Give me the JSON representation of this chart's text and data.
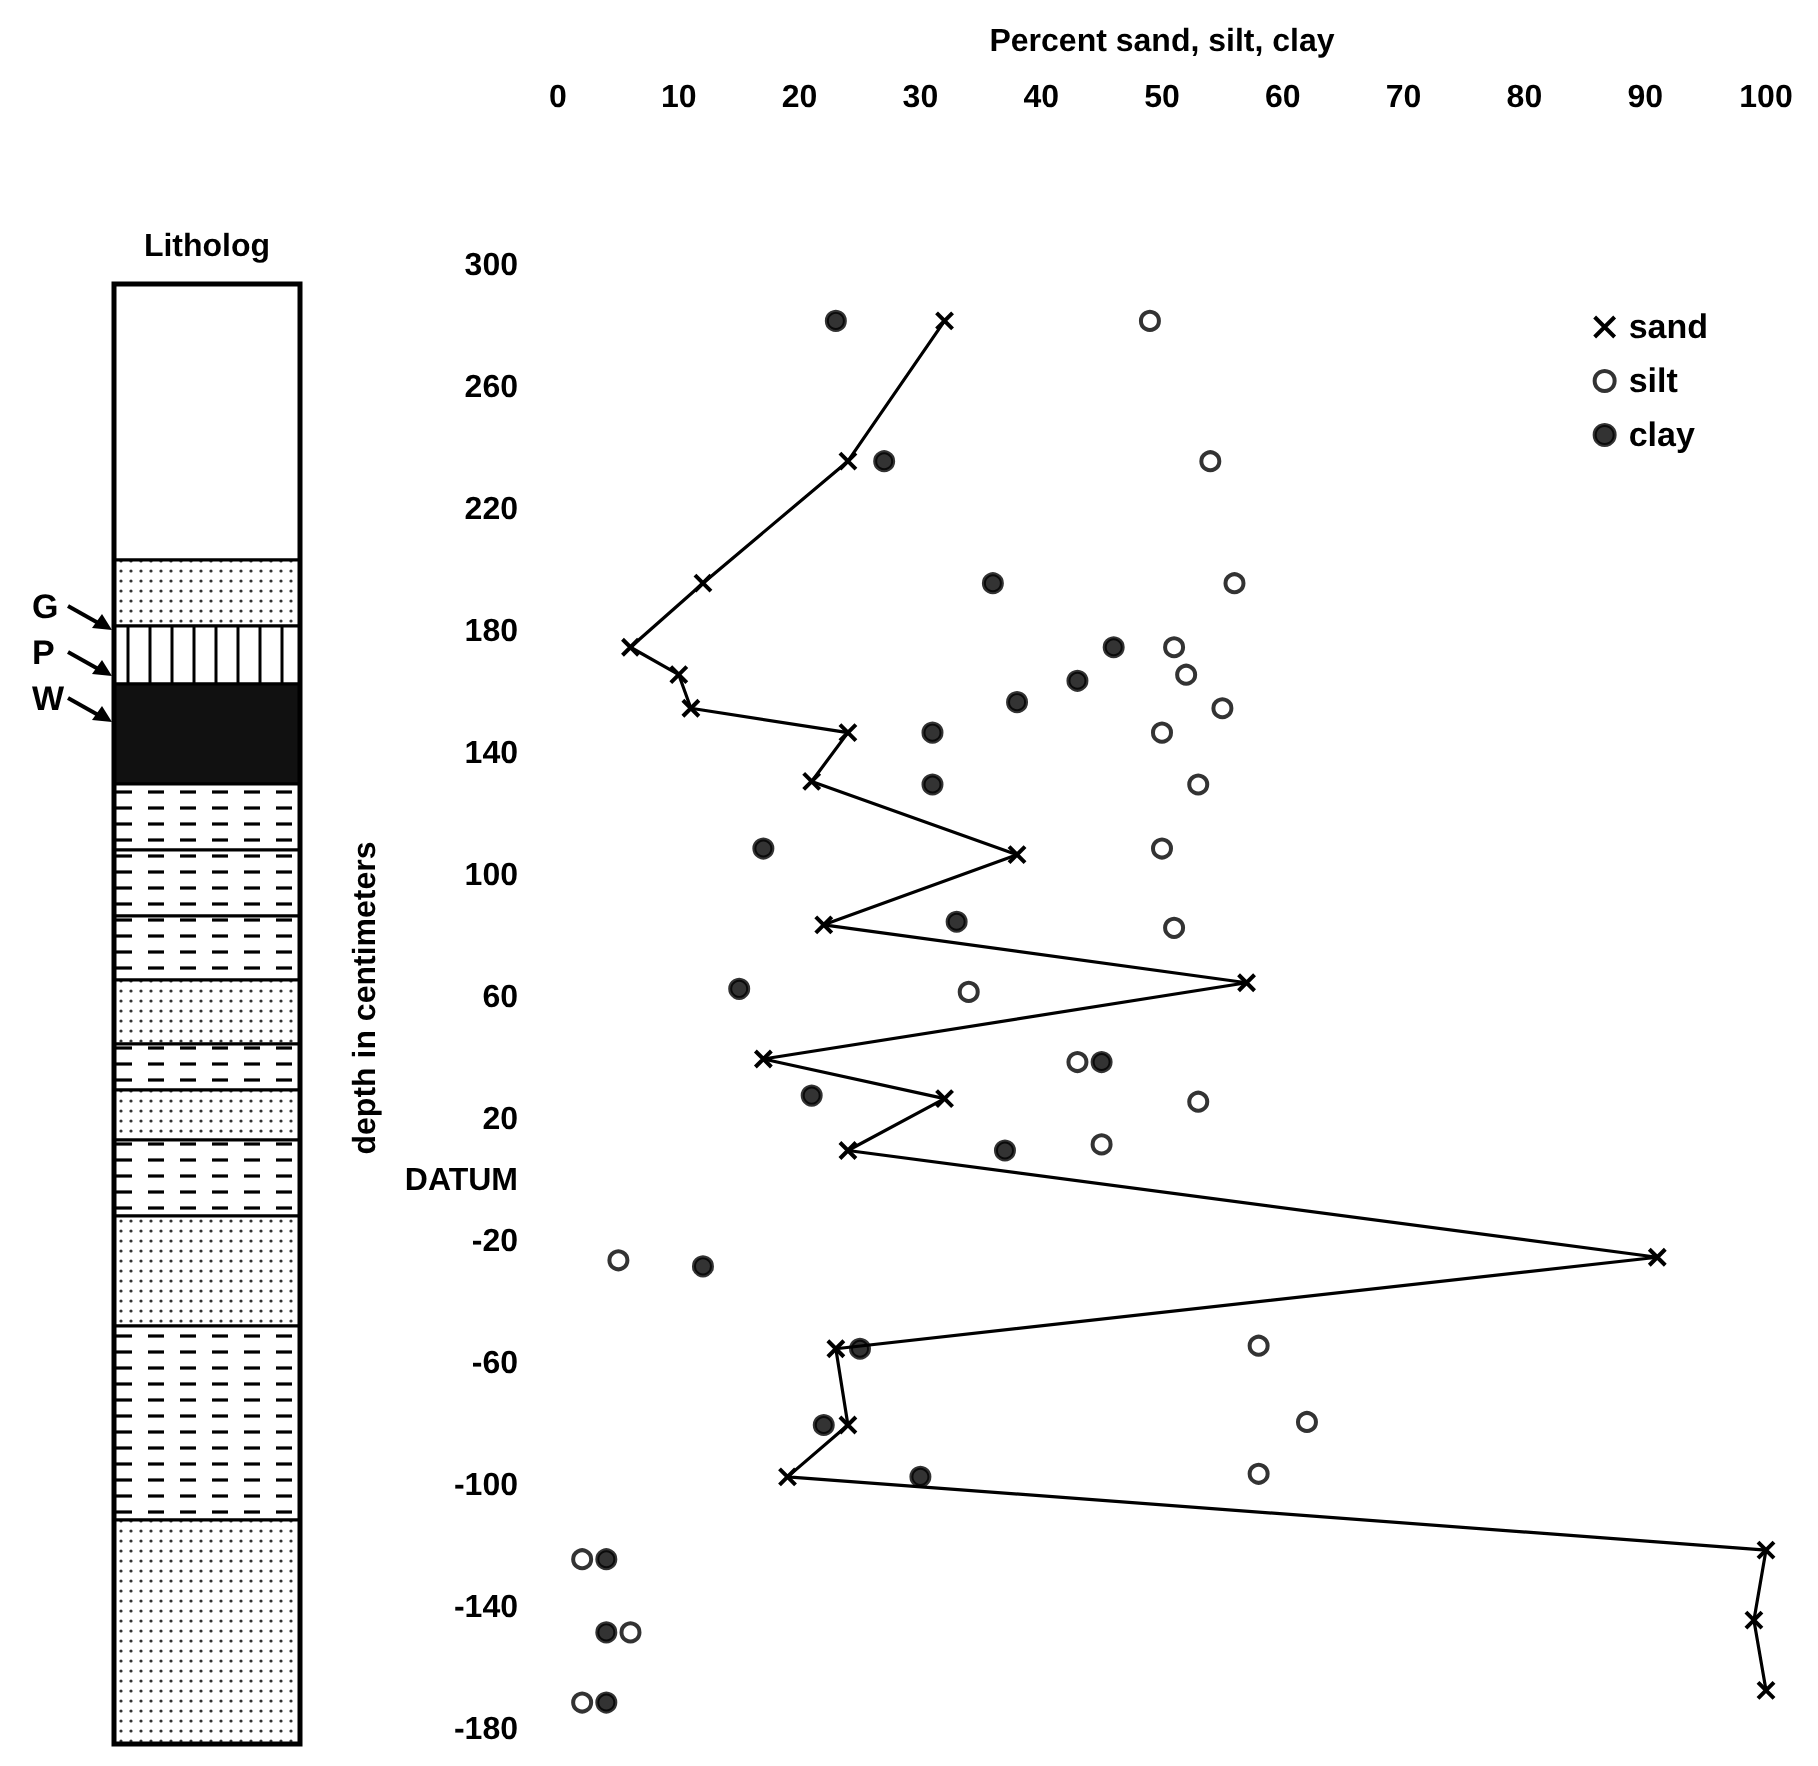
{
  "chart_data": {
    "type": "scatter",
    "xlabel": "Percent sand, silt, clay",
    "ylabel": "depth in centimeters",
    "annotations": [
      "Litholog",
      "G",
      "P",
      "W"
    ],
    "xlim": [
      0,
      100
    ],
    "xticks": [
      0,
      10,
      20,
      30,
      40,
      50,
      60,
      70,
      80,
      90,
      100
    ],
    "ylim": [
      -180,
      300
    ],
    "yticks": [
      300,
      260,
      220,
      180,
      140,
      100,
      60,
      20,
      {
        "value": 0,
        "label": "DATUM"
      },
      -20,
      -60,
      -100,
      -140,
      -180
    ],
    "grid": false,
    "legend": "top right",
    "series": [
      {
        "name": "sand",
        "type": "line",
        "marker": "cross",
        "color": "#000000",
        "x": [
          32,
          24,
          12,
          6,
          10,
          11,
          24,
          21,
          38,
          22,
          57,
          17,
          32,
          24,
          91,
          23,
          24,
          19,
          100,
          99,
          100
        ],
        "values": [
          282,
          236,
          196,
          175,
          166,
          155,
          147,
          131,
          107,
          84,
          65,
          40,
          27,
          10,
          -25,
          -55,
          -80,
          -97,
          -121,
          -144,
          -167
        ]
      },
      {
        "name": "silt",
        "type": "scatter",
        "marker": "circle",
        "color": "#ffffff",
        "x": [
          49,
          54,
          56,
          51,
          52,
          55,
          50,
          53,
          50,
          51,
          34,
          43,
          53,
          45,
          5,
          58,
          62,
          58,
          2,
          6,
          2
        ],
        "values": [
          282,
          236,
          196,
          175,
          166,
          155,
          147,
          130,
          109,
          83,
          62,
          39,
          26,
          12,
          -26,
          -54,
          -79,
          -96,
          -124,
          -148,
          -171
        ]
      },
      {
        "name": "clay",
        "type": "scatter",
        "marker": "circle",
        "color": "#000000",
        "x": [
          23,
          27,
          36,
          46,
          43,
          38,
          31,
          31,
          17,
          33,
          15,
          45,
          21,
          37,
          12,
          25,
          22,
          30,
          4,
          4,
          4
        ],
        "values": [
          282,
          236,
          196,
          175,
          164,
          157,
          147,
          130,
          109,
          85,
          63,
          39,
          28,
          10,
          -28,
          -55,
          -80,
          -97,
          -124,
          -148,
          -171
        ]
      }
    ]
  }
}
